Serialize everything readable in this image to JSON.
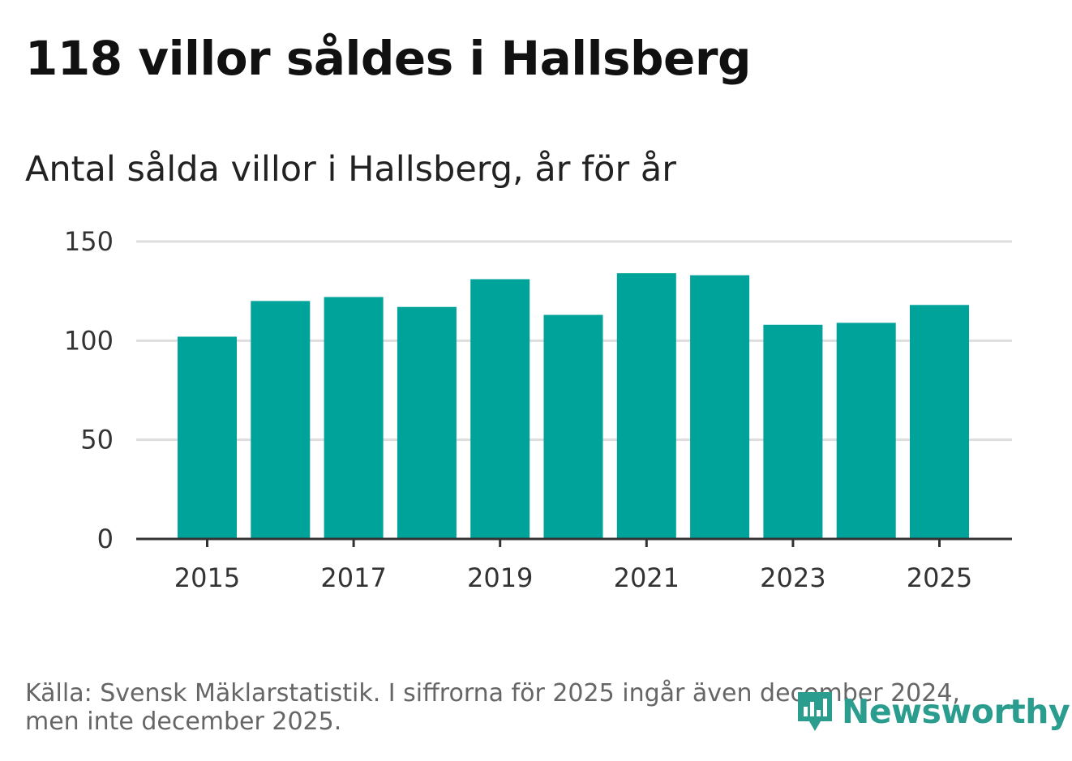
{
  "headline": "118 villor såldes i Hallsberg",
  "footnote": {
    "line1": "Källa: Svensk Mäklarstatistik. I siffrorna för 2025 ingår även december 2024,",
    "line2": "men inte december 2025."
  },
  "brand": {
    "name": "Newsworthy",
    "icon": "bar-chart-speech-bubble-icon",
    "color": "#2a9d8f"
  },
  "colors": {
    "bar": "#00a39a",
    "grid": "#dddddd",
    "axis": "#333333"
  },
  "chart_data": {
    "type": "bar",
    "title": "Antal sålda villor i Hallsberg, år för år",
    "xlabel": "",
    "ylabel": "",
    "categories": [
      "2015",
      "2016",
      "2017",
      "2018",
      "2019",
      "2020",
      "2021",
      "2022",
      "2023",
      "2024",
      "2025"
    ],
    "values": [
      102,
      120,
      122,
      117,
      131,
      113,
      134,
      133,
      108,
      109,
      118
    ],
    "ylim": [
      0,
      150
    ],
    "yticks": [
      0,
      50,
      100,
      150
    ],
    "xtick_labels": [
      "2015",
      "2017",
      "2019",
      "2021",
      "2023",
      "2025"
    ],
    "grid": true,
    "legend": "none"
  }
}
